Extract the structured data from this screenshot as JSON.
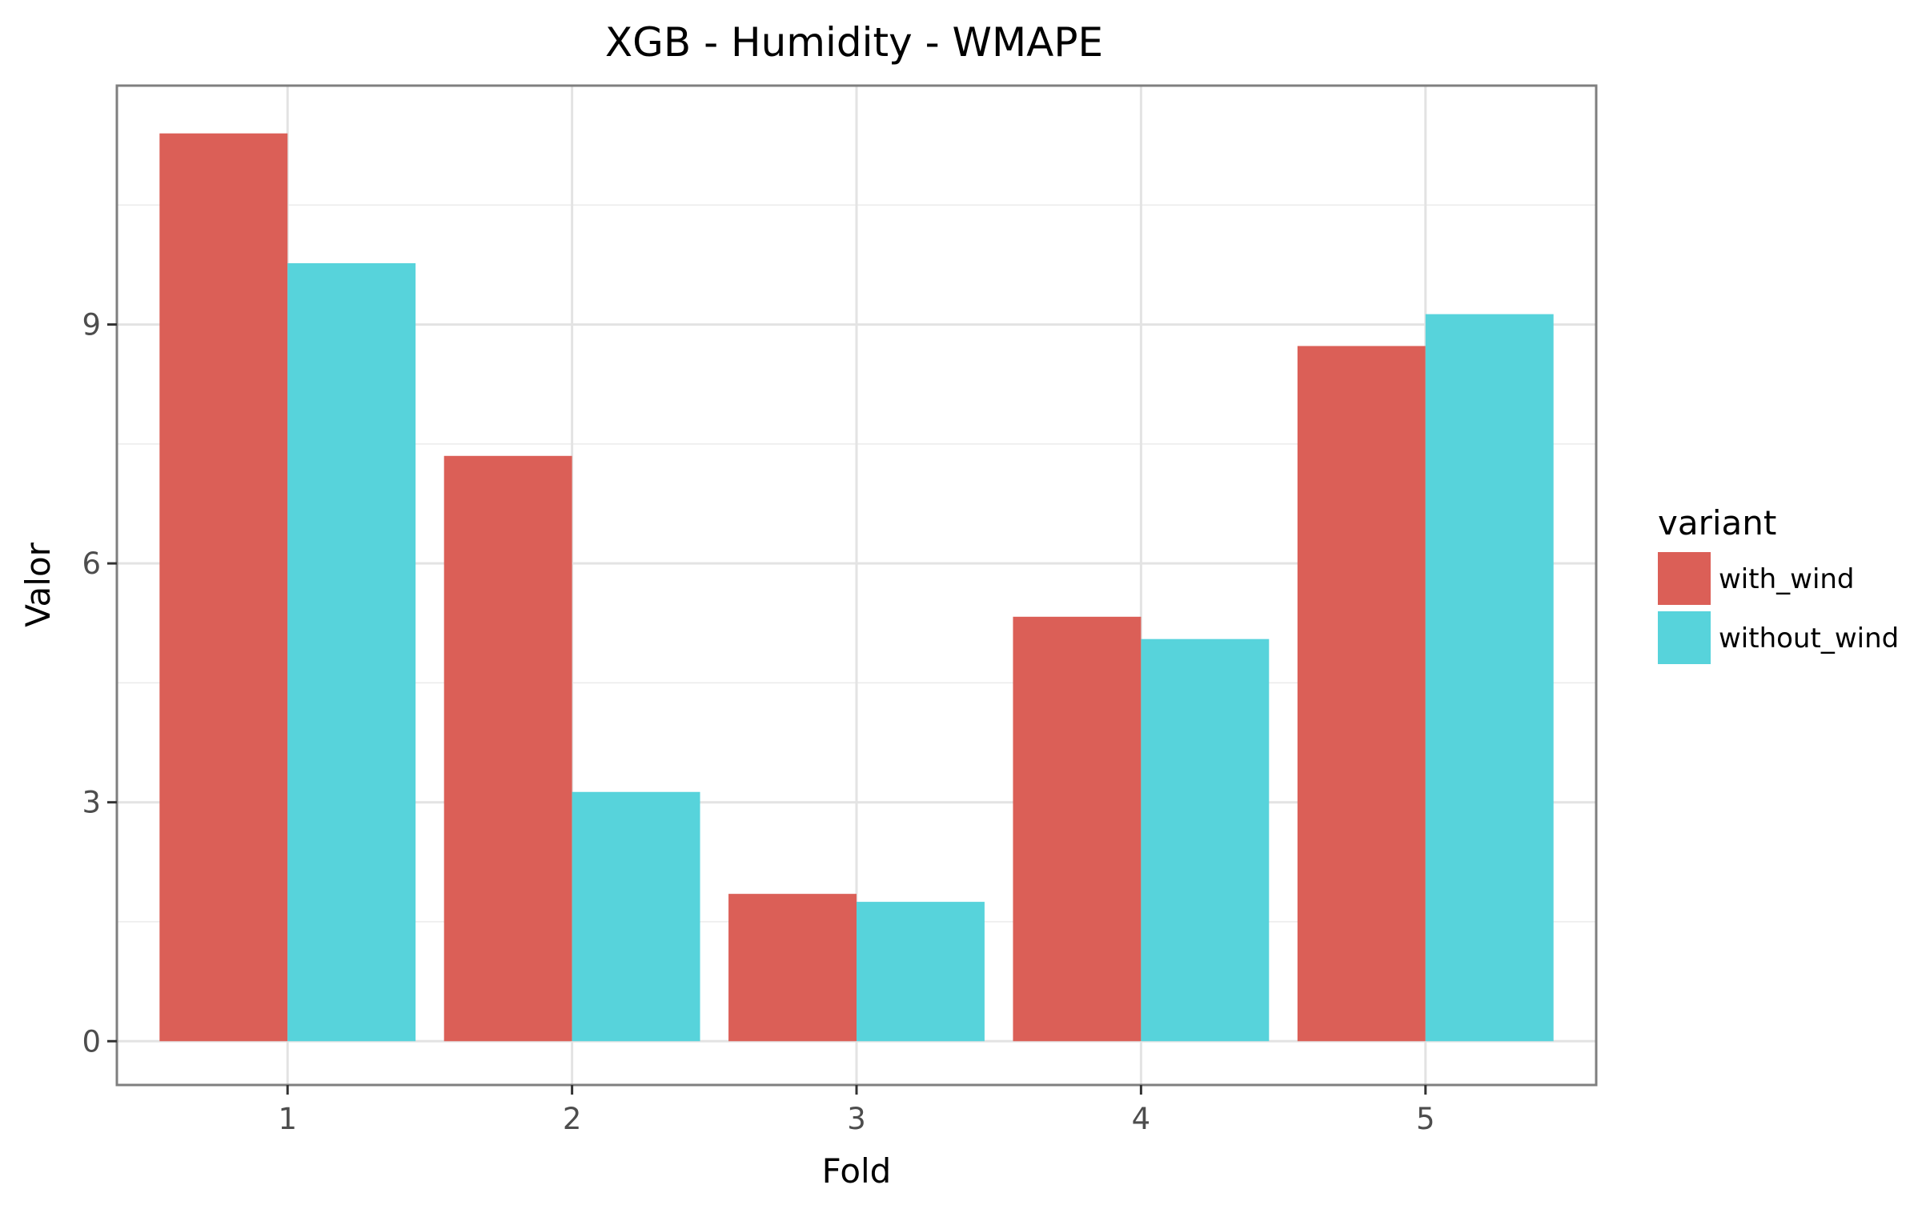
{
  "chart_data": {
    "type": "bar",
    "title": "XGB - Humidity - WMAPE",
    "xlabel": "Fold",
    "ylabel": "Valor",
    "categories": [
      "1",
      "2",
      "3",
      "4",
      "5"
    ],
    "series": [
      {
        "name": "with_wind",
        "color": "#DB5F57",
        "values": [
          11.4,
          7.35,
          1.85,
          5.33,
          8.73
        ]
      },
      {
        "name": "without_wind",
        "color": "#57D3DB",
        "values": [
          9.77,
          3.13,
          1.75,
          5.05,
          9.13
        ]
      }
    ],
    "ylim": [
      -0.55,
      12.0
    ],
    "yticks": [
      0,
      3,
      6,
      9
    ],
    "grid": true,
    "legend": {
      "title": "variant",
      "position": "right"
    }
  }
}
